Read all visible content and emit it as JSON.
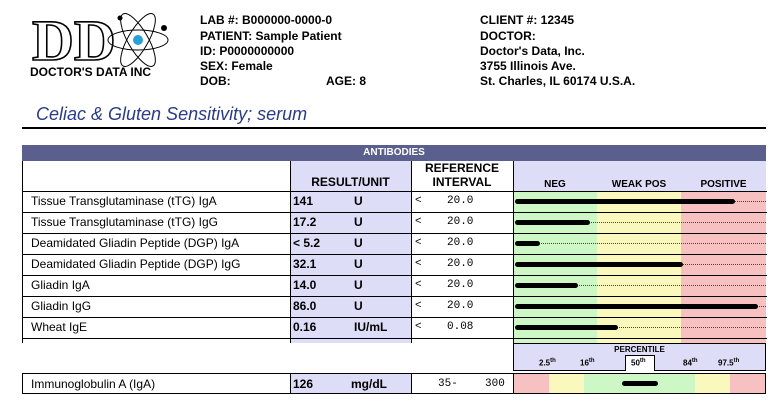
{
  "header": {
    "logo_text": "DOCTOR'S DATA INC",
    "lab_line": "LAB #: B000000-0000-0",
    "patient_line": "PATIENT: Sample Patient",
    "id_line": "ID: P0000000000",
    "sex_line": "SEX: Female",
    "dob_line": "DOB:",
    "age_line": "AGE: 8",
    "client_line": "CLIENT #: 12345",
    "doctor_line": "DOCTOR:",
    "addr1": "Doctor's Data, Inc.",
    "addr2": "3755 Illinois Ave.",
    "addr3": "St. Charles, IL 60174 U.S.A."
  },
  "title": "Celiac & Gluten Sensitivity; serum",
  "section": "ANTIBODIES",
  "columns": {
    "result_unit": "RESULT/UNIT",
    "reference_1": "REFERENCE",
    "reference_2": "INTERVAL",
    "neg": "NEG",
    "weak_pos": "WEAK POS",
    "positive": "POSITIVE"
  },
  "rows": [
    {
      "name": "Tissue Transglutaminase (tTG) IgA",
      "value": "141",
      "unit": "U",
      "lt": "<",
      "ref": "20.0",
      "level": 0.88
    },
    {
      "name": "Tissue Transglutaminase (tTG) IgG",
      "value": "17.2",
      "unit": "U",
      "lt": "<",
      "ref": "20.0",
      "level": 0.3
    },
    {
      "name": "Deamidated Gliadin Peptide (DGP) IgA",
      "value": "< 5.2",
      "unit": "U",
      "lt": "<",
      "ref": "20.0",
      "level": 0.1
    },
    {
      "name": "Deamidated Gliadin Peptide (DGP) IgG",
      "value": "32.1",
      "unit": "U",
      "lt": "<",
      "ref": "20.0",
      "level": 0.67
    },
    {
      "name": "Gliadin IgA",
      "value": "14.0",
      "unit": "U",
      "lt": "<",
      "ref": "20.0",
      "level": 0.25
    },
    {
      "name": "Gliadin IgG",
      "value": "86.0",
      "unit": "U",
      "lt": "<",
      "ref": "20.0",
      "level": 0.97
    },
    {
      "name": "Wheat IgE",
      "value": "0.16",
      "unit": "IU/mL",
      "lt": "<",
      "ref": "0.08",
      "level": 0.41
    }
  ],
  "percentile": {
    "label": "PERCENTILE",
    "ticks": [
      "2.5",
      "16",
      "50",
      "84",
      "97.5"
    ],
    "tick_suffixes": [
      "th",
      "th",
      "th",
      "th",
      "th"
    ]
  },
  "iga": {
    "name": "Immunoglobulin A (IgA)",
    "value": "126",
    "unit": "mg/dL",
    "low": "35-",
    "high": "300",
    "level": 0.5
  },
  "colors": {
    "band": "#5a5f8e",
    "shade": "#ddddf7",
    "neg": "#cdf7c4",
    "weak": "#fbf8bd",
    "pos": "#f8c1c1",
    "title": "#2a3a8c"
  }
}
